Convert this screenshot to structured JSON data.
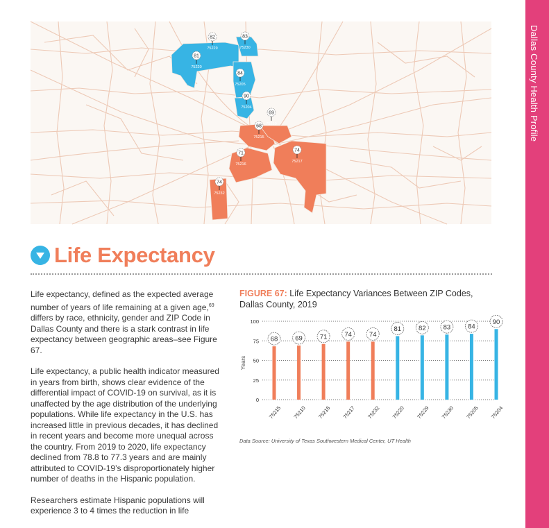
{
  "sidebar": {
    "title": "Dallas County Health Profile"
  },
  "map": {
    "zip_markers": [
      {
        "zip": "75229",
        "value": "82",
        "group": "high"
      },
      {
        "zip": "75230",
        "value": "83",
        "group": "high"
      },
      {
        "zip": "75220",
        "value": "81",
        "group": "high"
      },
      {
        "zip": "75205",
        "value": "84",
        "group": "high"
      },
      {
        "zip": "75204",
        "value": "90",
        "group": "high"
      },
      {
        "zip": "75210",
        "value": "69",
        "group": "low"
      },
      {
        "zip": "75215",
        "value": "68",
        "group": "low"
      },
      {
        "zip": "75216",
        "value": "71",
        "group": "low"
      },
      {
        "zip": "75217",
        "value": "74",
        "group": "low"
      },
      {
        "zip": "75232",
        "value": "74",
        "group": "low"
      }
    ]
  },
  "section": {
    "title": "Life Expectancy"
  },
  "body": {
    "p1_a": "Life expectancy, defined as the expected average number of years of life remaining at a given age,",
    "p1_sup": "69",
    "p1_b": " differs by race, ethnicity, gender and ZIP Code in Dallas County and there is a stark contrast in life expectancy between geographic areas–see Figure 67.",
    "p2": "Life expectancy, a public health indicator measured in years from birth, shows clear evidence of the differential impact of COVID-19 on survival, as it is unaffected by the age distribution of the underlying populations. While life expectancy in the U.S. has increased little in previous decades, it has declined in recent years and become more unequal across the country. From 2019 to 2020, life expectancy declined from 78.8 to 77.3 years and are mainly attributed to COVID-19’s disproportionately higher number of deaths in the Hispanic population.",
    "p3": "Researchers estimate Hispanic populations will experience 3 to 4 times the reduction in life"
  },
  "figure": {
    "label": "FIGURE 67:",
    "title": " Life Expectancy Variances Between ZIP Codes, Dallas County, 2019",
    "source": "Data Source: University of Texas Southwestern Medical Center, UT Health"
  },
  "chart_data": {
    "type": "bar",
    "categories": [
      "75215",
      "75210",
      "75216",
      "75217",
      "75232",
      "75220",
      "75229",
      "75230",
      "75205",
      "75204"
    ],
    "values": [
      68,
      69,
      71,
      74,
      74,
      81,
      82,
      83,
      84,
      90
    ],
    "colors": [
      "#f07e5a",
      "#f07e5a",
      "#f07e5a",
      "#f07e5a",
      "#f07e5a",
      "#37b4e4",
      "#37b4e4",
      "#37b4e4",
      "#37b4e4",
      "#37b4e4"
    ],
    "ylabel": "Years",
    "ylim": [
      0,
      100
    ],
    "yticks": [
      "0",
      "25",
      "50",
      "75",
      "100"
    ],
    "grid": true
  },
  "colors": {
    "accent": "#f07e5a",
    "blue": "#37b4e4",
    "pink": "#e3407b"
  }
}
